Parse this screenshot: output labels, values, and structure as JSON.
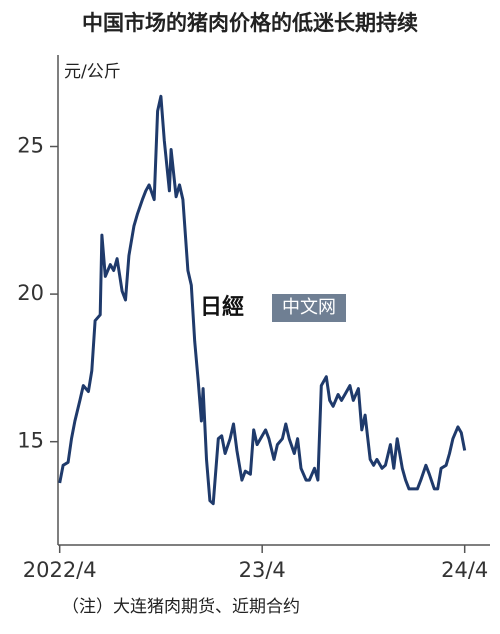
{
  "chart_data": {
    "type": "line",
    "title": "中国市场的猪肉价格的低迷长期持续",
    "y_label": "元/公斤",
    "note": "（注）大连猪肉期货、近期合约",
    "watermark": [
      "日經",
      "中文网"
    ],
    "x": [
      0,
      0.2,
      0.5,
      0.7,
      0.9,
      1.2,
      1.4,
      1.7,
      1.9,
      2.1,
      2.4,
      2.5,
      2.7,
      3.0,
      3.2,
      3.4,
      3.7,
      3.9,
      4.1,
      4.4,
      4.6,
      4.9,
      5.1,
      5.3,
      5.6,
      5.8,
      6.0,
      6.2,
      6.5,
      6.6,
      6.9,
      7.1,
      7.3,
      7.6,
      7.8,
      8.0,
      8.2,
      8.4,
      8.5,
      8.7,
      8.9,
      9.1,
      9.4,
      9.6,
      9.8,
      10.1,
      10.3,
      10.5,
      10.8,
      11.0,
      11.3,
      11.5,
      11.7,
      12.0,
      12.2,
      12.4,
      12.7,
      12.9,
      13.2,
      13.4,
      13.6,
      13.9,
      14.1,
      14.3,
      14.6,
      14.8,
      15.1,
      15.3,
      15.5,
      15.8,
      16.0,
      16.2,
      16.5,
      16.7,
      16.9,
      17.2,
      17.4,
      17.7,
      17.9,
      18.1,
      18.4,
      18.6,
      18.8,
      19.1,
      19.3,
      19.6,
      19.8,
      20.0,
      20.3,
      20.5,
      20.7,
      21.0,
      21.2,
      21.4,
      21.7,
      21.9,
      22.2,
      22.4,
      22.6,
      22.9,
      23.1,
      23.3,
      23.6,
      23.8,
      24.0
    ],
    "series": [
      {
        "name": "大连猪肉期货",
        "color": "#1f3a6b",
        "values": [
          13.6,
          14.2,
          14.3,
          15.1,
          15.7,
          16.4,
          16.9,
          16.7,
          17.4,
          19.1,
          19.3,
          22.0,
          20.6,
          21.0,
          20.8,
          21.2,
          20.1,
          19.8,
          21.3,
          22.3,
          22.7,
          23.2,
          23.5,
          23.7,
          23.2,
          26.2,
          26.7,
          25.2,
          23.5,
          24.9,
          23.3,
          23.7,
          23.2,
          20.8,
          20.3,
          18.4,
          17.1,
          15.7,
          16.8,
          14.4,
          13.0,
          12.9,
          15.1,
          15.2,
          14.6,
          15.1,
          15.6,
          14.7,
          13.7,
          14.0,
          13.9,
          15.4,
          14.9,
          15.2,
          15.4,
          15.1,
          14.4,
          14.9,
          15.1,
          15.6,
          15.1,
          14.6,
          15.1,
          14.1,
          13.7,
          13.7,
          14.1,
          13.7,
          16.9,
          17.2,
          16.4,
          16.2,
          16.6,
          16.4,
          16.6,
          16.9,
          16.4,
          16.8,
          15.4,
          15.9,
          14.4,
          14.2,
          14.4,
          14.1,
          14.2,
          14.9,
          14.1,
          15.1,
          14.1,
          13.7,
          13.4,
          13.4,
          13.4,
          13.7,
          14.2,
          13.9,
          13.4,
          13.4,
          14.1,
          14.2,
          14.6,
          15.1,
          15.5,
          15.3,
          14.7
        ]
      }
    ],
    "xlim": [
      -0.1,
      25.5
    ],
    "ylim": [
      11.5,
      28.1
    ],
    "xticks": [
      {
        "value": 0,
        "label": "2022/4"
      },
      {
        "value": 12,
        "label": "23/4"
      },
      {
        "value": 24,
        "label": "24/4"
      }
    ],
    "yticks": [
      15,
      20,
      25
    ],
    "grid": false
  }
}
